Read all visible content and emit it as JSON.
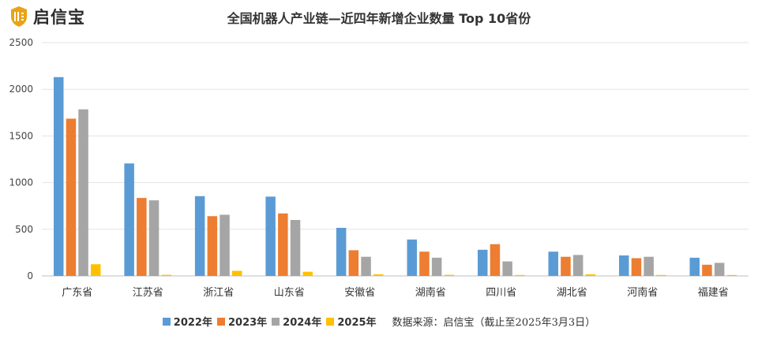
{
  "brand": {
    "name": "启信宝",
    "logo_icon": "shield-logo-icon",
    "logo_color": "#e8a317"
  },
  "colors": {
    "2022年": "#5b9bd5",
    "2023年": "#ed7d31",
    "2024年": "#a5a5a5",
    "2025年": "#ffc000"
  },
  "source_note": "数据来源：启信宝（截止至2025年3月3日）",
  "chart_data": {
    "type": "bar",
    "title": "全国机器人产业链—近四年新增企业数量 Top 10省份",
    "xlabel": "",
    "ylabel": "",
    "ylim": [
      0,
      2500
    ],
    "yticks": [
      0,
      500,
      1000,
      1500,
      2000,
      2500
    ],
    "grid": true,
    "legend_position": "bottom",
    "categories": [
      "广东省",
      "江苏省",
      "浙江省",
      "山东省",
      "安徽省",
      "湖南省",
      "四川省",
      "湖北省",
      "河南省",
      "福建省"
    ],
    "series": [
      {
        "name": "2022年",
        "values": [
          2130,
          1205,
          855,
          850,
          515,
          390,
          280,
          260,
          220,
          195
        ]
      },
      {
        "name": "2023年",
        "values": [
          1685,
          835,
          640,
          670,
          275,
          260,
          340,
          205,
          190,
          120
        ]
      },
      {
        "name": "2024年",
        "values": [
          1785,
          810,
          655,
          600,
          205,
          195,
          155,
          225,
          205,
          140
        ]
      },
      {
        "name": "2025年",
        "values": [
          125,
          12,
          55,
          45,
          18,
          12,
          10,
          18,
          10,
          10
        ]
      }
    ]
  }
}
